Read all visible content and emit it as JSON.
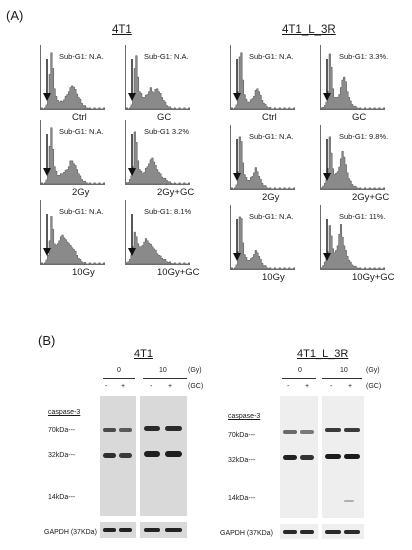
{
  "panel_a": {
    "label": "(A)",
    "groups": [
      {
        "title": "4T1",
        "plots": [
          {
            "subg": "Sub-G1: N.A.",
            "cond": "Ctrl"
          },
          {
            "subg": "Sub-G1: N.A.",
            "cond": "GC"
          },
          {
            "subg": "Sub-G1: N.A.",
            "cond": "2Gy"
          },
          {
            "subg": "Sub-G1 3.2%",
            "cond": "2Gy+GC"
          },
          {
            "subg": "Sub-G1: N.A.",
            "cond": "10Gy"
          },
          {
            "subg": "Sub-G1: 8.1%",
            "cond": "10Gy+GC"
          }
        ]
      },
      {
        "title": "4T1_L_3R",
        "plots": [
          {
            "subg": "Sub-G1: N.A.",
            "cond": "Ctrl"
          },
          {
            "subg": "Sub-G1: 3.3%.",
            "cond": "GC"
          },
          {
            "subg": "Sub-G1: N.A.",
            "cond": "2Gy"
          },
          {
            "subg": "Sub-G1: 9.8%.",
            "cond": "2Gy+GC"
          },
          {
            "subg": "Sub-G1: N.A.",
            "cond": "10Gy"
          },
          {
            "subg": "Sub-G1: 11%.",
            "cond": "10Gy+GC"
          }
        ]
      }
    ]
  },
  "panel_b": {
    "label": "(B)",
    "blots": [
      {
        "title": "4T1",
        "dose_values": [
          "0",
          "10"
        ],
        "dose_unit": "(Gy)",
        "gc_signs": [
          "-",
          "+",
          "-",
          "+"
        ],
        "gc_unit": "(GC)",
        "target": "caspase-3",
        "markers": [
          "70kDa---",
          "32kDa---",
          "14kDa---"
        ],
        "loading": "GAPDH (37KDa)"
      },
      {
        "title": "4T1_L_3R",
        "dose_values": [
          "0",
          "10"
        ],
        "dose_unit": "(Gy)",
        "gc_signs": [
          "-",
          "+",
          "-",
          "+"
        ],
        "gc_unit": "(GC)",
        "target": "caspase-3",
        "markers": [
          "70kDa---",
          "32kDa---",
          "14kDa---"
        ],
        "loading": "GAPDH (37KDa)"
      }
    ]
  },
  "colors": {
    "histogram_fill": "#8a8a8a",
    "arrow": "#111111"
  }
}
